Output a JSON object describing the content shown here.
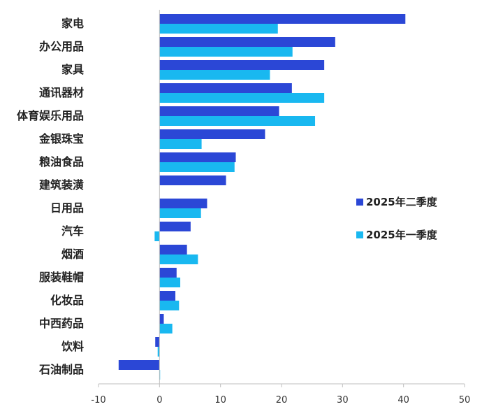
{
  "chart_data": {
    "type": "bar",
    "orientation": "horizontal",
    "categories": [
      "家电",
      "办公用品",
      "家具",
      "通讯器材",
      "体育娱乐用品",
      "金银珠宝",
      "粮油食品",
      "建筑装潢",
      "日用品",
      "汽车",
      "烟酒",
      "服装鞋帽",
      "化妆品",
      "中西药品",
      "饮料",
      "石油制品"
    ],
    "series": [
      {
        "name": "2025年二季度",
        "color": "#2b47d6",
        "values": [
          40.3,
          28.8,
          27.0,
          21.7,
          19.6,
          17.3,
          12.5,
          10.9,
          7.8,
          5.1,
          4.5,
          2.8,
          2.6,
          0.7,
          -0.7,
          -6.7
        ]
      },
      {
        "name": "2025年一季度",
        "color": "#19b8f0",
        "values": [
          19.4,
          21.8,
          18.1,
          27.0,
          25.5,
          6.9,
          12.3,
          null,
          6.8,
          -0.8,
          6.3,
          3.4,
          3.2,
          2.1,
          -0.3,
          0.1
        ]
      }
    ],
    "xlim": [
      -10,
      50
    ],
    "xticks": [
      -10,
      0,
      10,
      20,
      30,
      40,
      50
    ],
    "legend_position": "right",
    "grid": false
  }
}
